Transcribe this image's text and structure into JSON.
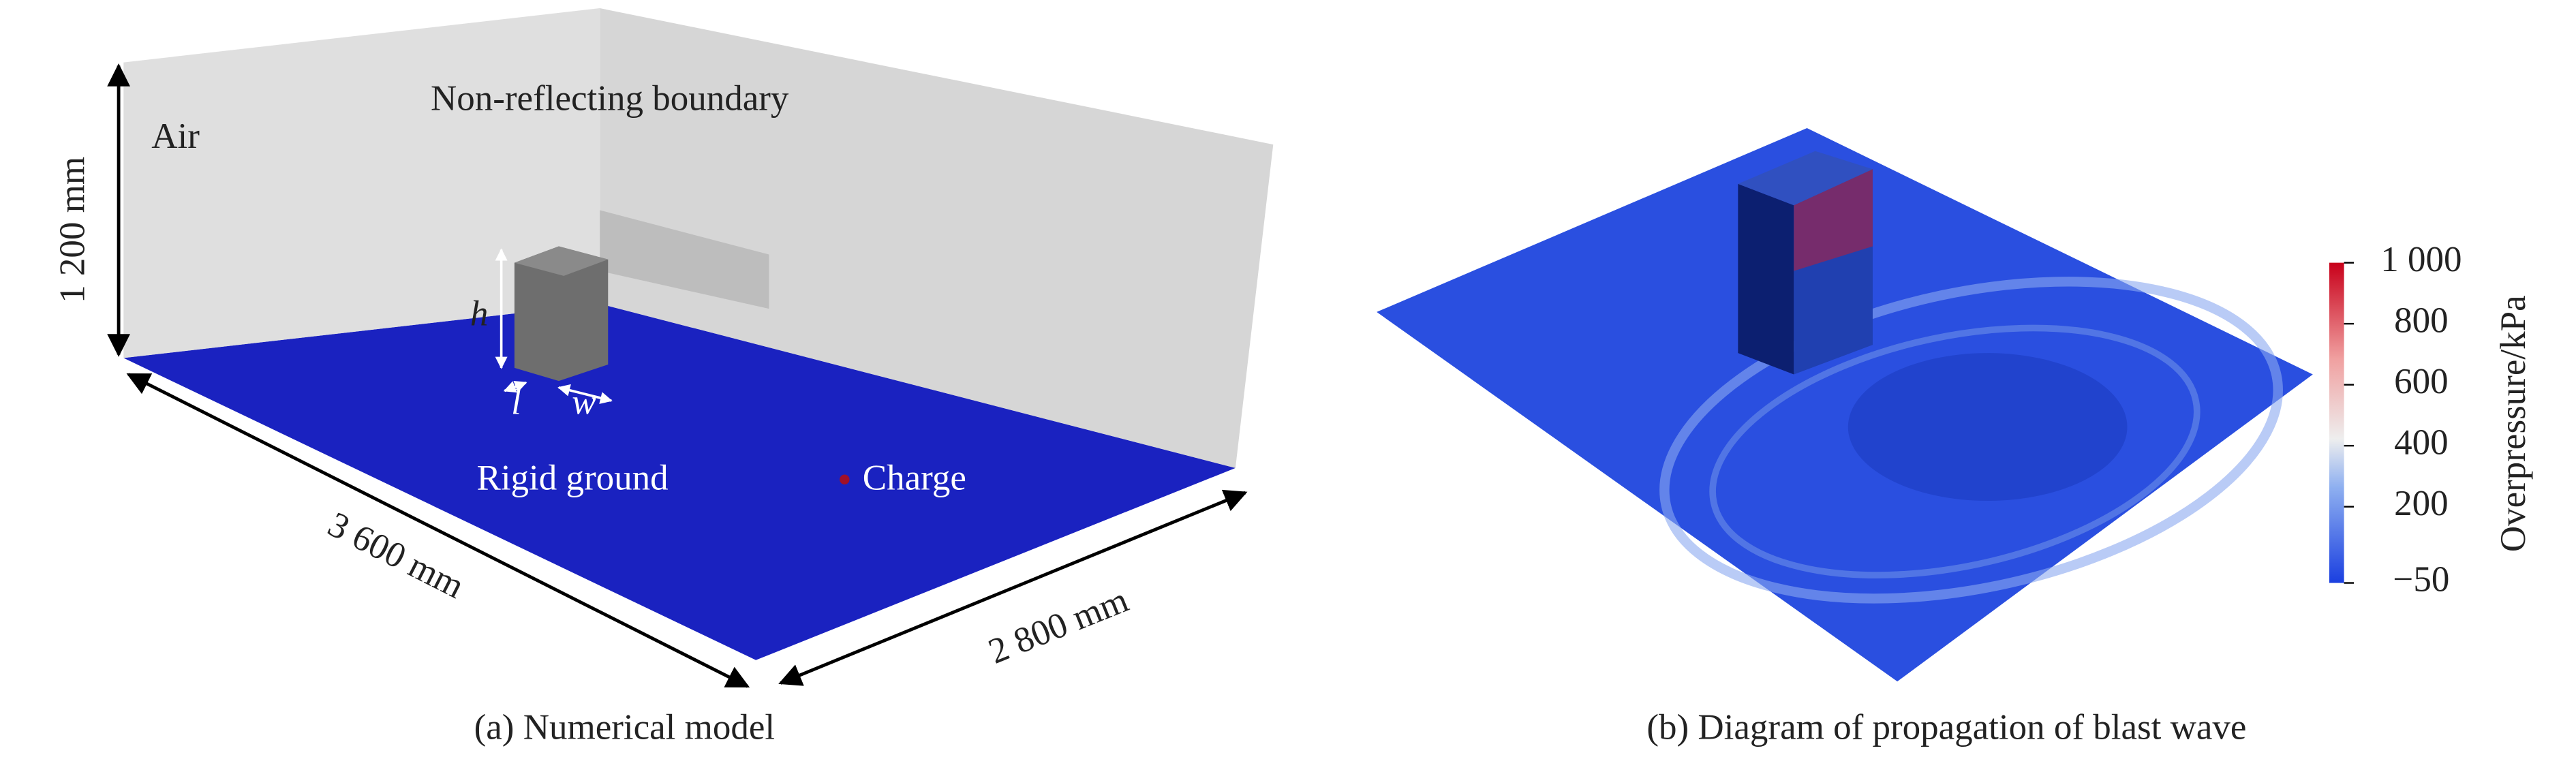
{
  "panel_a": {
    "caption": "(a) Numerical model",
    "boundary_label": "Non-reflecting boundary",
    "air_label": "Air",
    "height_label": "1 200 mm",
    "length_label": "3 600 mm",
    "width_label": "2 800 mm",
    "ground_label": "Rigid ground",
    "charge_label": "Charge",
    "h": "h",
    "l": "l",
    "w": "w"
  },
  "panel_b": {
    "caption": "(b) Diagram of propagation of blast wave",
    "colorbar": {
      "label": "Overpressure/kPa",
      "lim": [
        -50,
        1000
      ],
      "ticks": [
        {
          "value": 1000,
          "label": "1 000"
        },
        800,
        600,
        400,
        200,
        {
          "value": -50,
          "label": "−50"
        }
      ]
    }
  }
}
